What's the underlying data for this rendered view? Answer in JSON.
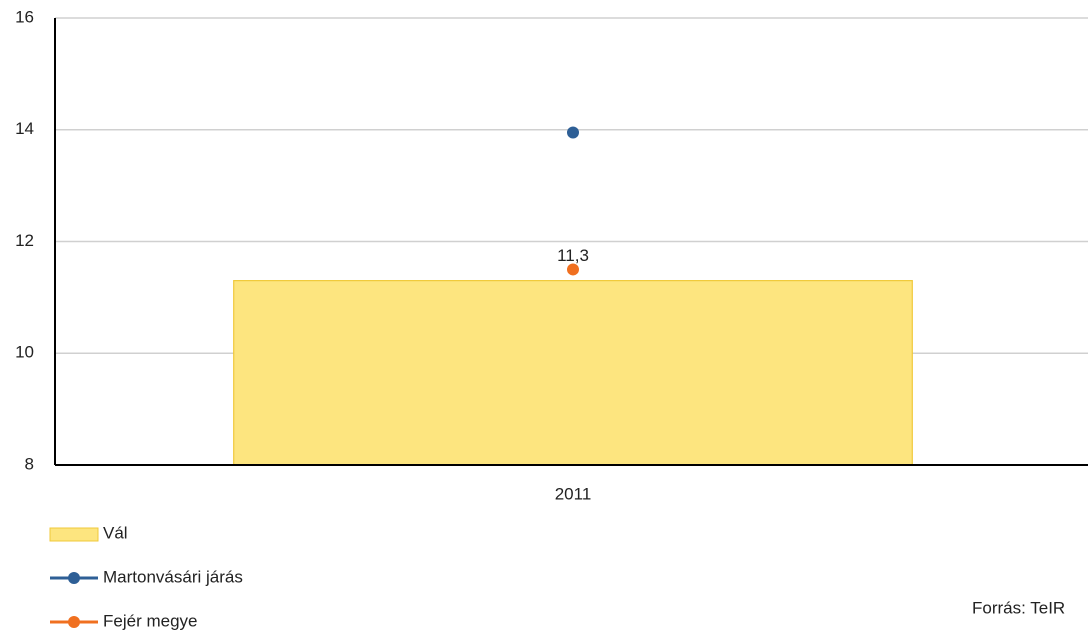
{
  "chart_data": {
    "type": "bar",
    "categories": [
      "2011"
    ],
    "series": [
      {
        "name": "Vál",
        "type": "bar",
        "color": "#fde57f",
        "values": [
          11.3
        ],
        "value_labels": [
          "11,3"
        ]
      },
      {
        "name": "Martonvásári járás",
        "type": "line",
        "color": "#2e5f96",
        "values": [
          13.95
        ]
      },
      {
        "name": "Fejér megye",
        "type": "line",
        "color": "#f07020",
        "values": [
          11.5
        ]
      }
    ],
    "ylim": [
      8,
      16
    ],
    "yticks": [
      8,
      10,
      12,
      14,
      16
    ],
    "grid": true,
    "legend": "bottom-left",
    "source": "Forrás: TeIR"
  }
}
